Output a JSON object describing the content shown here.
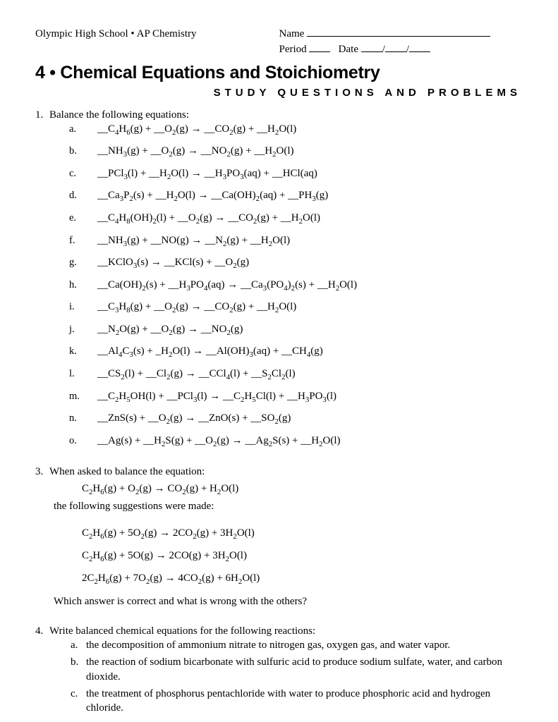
{
  "header": {
    "school": "Olympic High School",
    "bullet": "•",
    "course": "AP Chemistry",
    "name_label": "Name",
    "period_label": "Period",
    "date_label": "Date"
  },
  "title": {
    "unit_num": "4",
    "bullet": "•",
    "unit_title": "Chemical Equations and Stoichiometry",
    "subtitle": "STUDY QUESTIONS AND PROBLEMS"
  },
  "q1": {
    "num": "1.",
    "prompt": "Balance the following equations:",
    "items": [
      {
        "l": "a.",
        "eq": "__C<sub>4</sub>H<sub>6</sub>(g)  +  __O<sub>2</sub>(g)  →  __CO<sub>2</sub>(g)  +  __H<sub>2</sub>O(l)"
      },
      {
        "l": "b.",
        "eq": "__NH<sub>3</sub>(g)  +  __O<sub>2</sub>(g)  →  __NO<sub>2</sub>(g)  +  __H<sub>2</sub>O(l)"
      },
      {
        "l": "c.",
        "eq": "__PCl<sub>3</sub>(l)  +  __H<sub>2</sub>O(l)  →  __H<sub>3</sub>PO<sub>3</sub>(aq)  +  __HCl(aq)"
      },
      {
        "l": "d.",
        "eq": "__Ca<sub>3</sub>P<sub>2</sub>(s)  +  __H<sub>2</sub>O(l)  →  __Ca(OH)<sub>2</sub>(aq)  +  __PH<sub>3</sub>(g)"
      },
      {
        "l": "e.",
        "eq": "__C<sub>4</sub>H<sub>8</sub>(OH)<sub>2</sub>(l)  +  __O<sub>2</sub>(g)  →  __CO<sub>2</sub>(g)  +  __H<sub>2</sub>O(l)"
      },
      {
        "l": "f.",
        "eq": "__NH<sub>3</sub>(g)  +  __NO(g)  →  __N<sub>2</sub>(g)  +  __H<sub>2</sub>O(l)"
      },
      {
        "l": "g.",
        "eq": "__KClO<sub>3</sub>(s)  →  __KCl(s)  +  __O<sub>2</sub>(g)"
      },
      {
        "l": "h.",
        "eq": "__Ca(OH)<sub>2</sub>(s)  +  __H<sub>3</sub>PO<sub>4</sub>(aq)  →  __Ca<sub>3</sub>(PO<sub>4</sub>)<sub>2</sub>(s)  +  __H<sub>2</sub>O(l)"
      },
      {
        "l": "i.",
        "eq": "__C<sub>3</sub>H<sub>8</sub>(g)  +  __O<sub>2</sub>(g)  →  __CO<sub>2</sub>(g)  +  __H<sub>2</sub>O(l)"
      },
      {
        "l": "j.",
        "eq": "__N<sub>2</sub>O(g)  +  __O<sub>2</sub>(g)  →  __NO<sub>2</sub>(g)"
      },
      {
        "l": "k.",
        "eq": "__Al<sub>4</sub>C<sub>3</sub>(s)  +  _H<sub>2</sub>O(l)  →  __Al(OH)<sub>3</sub>(aq)  +  __CH<sub>4</sub>(g)"
      },
      {
        "l": "l.",
        "eq": "__CS<sub>2</sub>(l)  +  __Cl<sub>2</sub>(g)  →  __CCl<sub>4</sub>(l)  +  __S<sub>2</sub>Cl<sub>2</sub>(l)"
      },
      {
        "l": "m.",
        "eq": "__C<sub>2</sub>H<sub>5</sub>OH(l)  +  __PCl<sub>3</sub>(l)  →  __C<sub>2</sub>H<sub>5</sub>Cl(l)  +  __H<sub>3</sub>PO<sub>3</sub>(l)"
      },
      {
        "l": "n.",
        "eq": "__ZnS(s)  +  __O<sub>2</sub>(g)  →  __ZnO(s)  +  __SO<sub>2</sub>(g)"
      },
      {
        "l": "o.",
        "eq": "__Ag(s)  +  __H<sub>2</sub>S(g)  +  __O<sub>2</sub>(g)  →  __Ag<sub>2</sub>S(s)  +  __H<sub>2</sub>O(l)"
      }
    ]
  },
  "q3": {
    "num": "3.",
    "line1": "When asked to balance the equation:",
    "eq": "C<sub>2</sub>H<sub>6</sub>(g)  +  O<sub>2</sub>(g)  →  CO<sub>2</sub>(g)  +  H<sub>2</sub>O(l)",
    "line2": "the following suggestions were made:",
    "suggestions": [
      "C<sub>2</sub>H<sub>6</sub>(g)  +  5O<sub>2</sub>(g)  →  2CO<sub>2</sub>(g)  +  3H<sub>2</sub>O(l)",
      "C<sub>2</sub>H<sub>6</sub>(g)  +  5O(g)  →  2CO(g)  +  3H<sub>2</sub>O(l)",
      "2C<sub>2</sub>H<sub>6</sub>(g)  +  7O<sub>2</sub>(g)  →  4CO<sub>2</sub>(g)  +  6H<sub>2</sub>O(l)"
    ],
    "line3": "Which answer is correct and what is wrong with the others?"
  },
  "q4": {
    "num": "4.",
    "prompt": "Write balanced chemical equations for the following reactions:",
    "items": [
      {
        "l": "a.",
        "t": "the decomposition of ammonium nitrate to nitrogen gas, oxygen gas, and water vapor."
      },
      {
        "l": "b.",
        "t": "the reaction of sodium bicarbonate with sulfuric acid to produce sodium sulfate, water, and carbon dioxide."
      },
      {
        "l": "c.",
        "t": "the treatment of phosphorus pentachloride with water to produce phosphoric acid and hydrogen chloride."
      }
    ]
  }
}
